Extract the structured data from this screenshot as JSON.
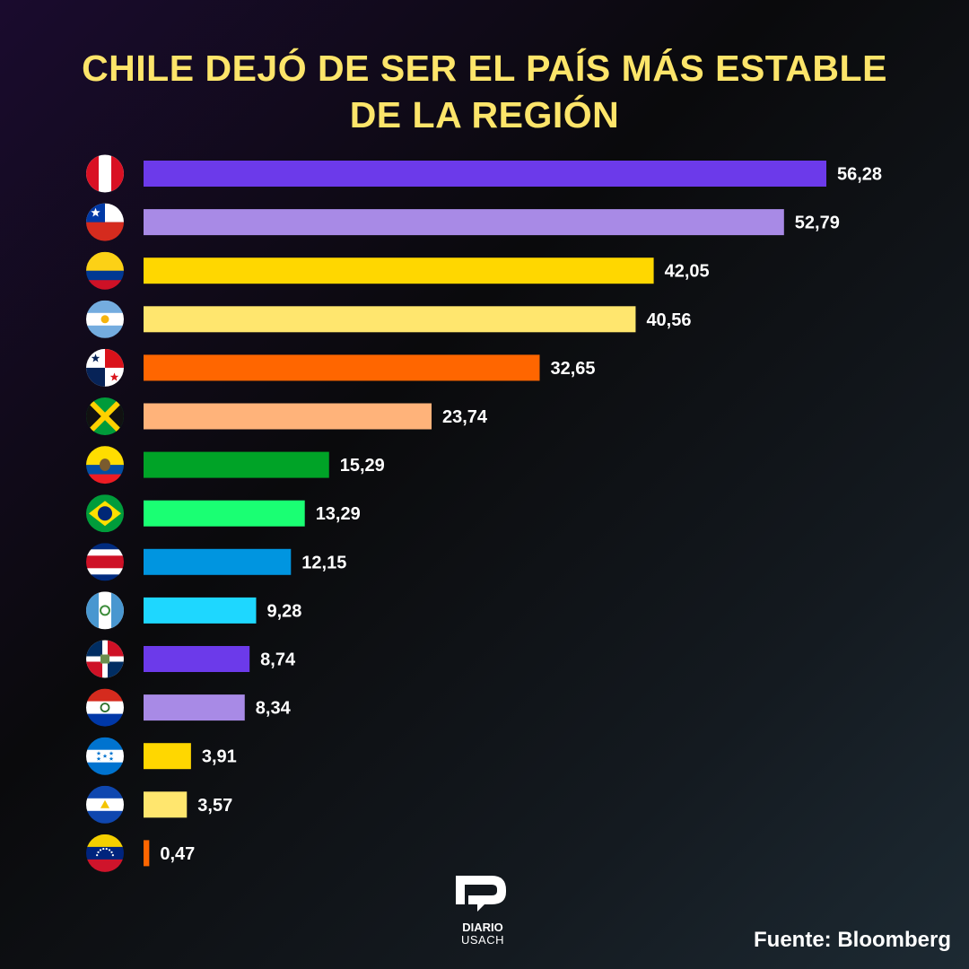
{
  "title_line1": "CHILE DEJÓ DE SER EL PAÍS MÁS ESTABLE",
  "title_line2": "DE LA REGIÓN",
  "source": "Fuente: Bloomberg",
  "logo": {
    "line1": "DIARIO",
    "line2": "USACH"
  },
  "chart_data": {
    "type": "bar",
    "orientation": "horizontal",
    "title": "CHILE DEJÓ DE SER EL PAÍS MÁS ESTABLE DE LA REGIÓN",
    "xlabel": "",
    "ylabel": "",
    "xlim": [
      0,
      56.28
    ],
    "grid": false,
    "categories": [
      "Perú",
      "Chile",
      "Colombia",
      "Argentina",
      "Panamá",
      "Jamaica",
      "Ecuador",
      "Brasil",
      "Costa Rica",
      "Guatemala",
      "República Dominicana",
      "Paraguay",
      "Honduras",
      "El Salvador",
      "Venezuela"
    ],
    "values": [
      56.28,
      52.79,
      42.05,
      40.56,
      32.65,
      23.74,
      15.29,
      13.29,
      12.15,
      9.28,
      8.74,
      8.34,
      3.91,
      3.57,
      0.47
    ],
    "labels": [
      "56,28",
      "52,79",
      "42,05",
      "40,56",
      "32,65",
      "23,74",
      "15,29",
      "13,29",
      "12,15",
      "9,28",
      "8,74",
      "8,34",
      "3,91",
      "3,57",
      "0,47"
    ],
    "colors": [
      "#6c3aea",
      "#a88ae6",
      "#ffd700",
      "#ffe66e",
      "#ff6600",
      "#ffb37a",
      "#00a327",
      "#1aff73",
      "#0095e0",
      "#1ed7ff",
      "#6c3aea",
      "#a88ae6",
      "#ffd700",
      "#ffe66e",
      "#ff6600"
    ],
    "flag_icons": [
      "peru-flag-icon",
      "chile-flag-icon",
      "colombia-flag-icon",
      "argentina-flag-icon",
      "panama-flag-icon",
      "jamaica-flag-icon",
      "ecuador-flag-icon",
      "brazil-flag-icon",
      "costa-rica-flag-icon",
      "guatemala-flag-icon",
      "dominican-republic-flag-icon",
      "paraguay-flag-icon",
      "honduras-flag-icon",
      "el-salvador-flag-icon",
      "venezuela-flag-icon"
    ]
  }
}
